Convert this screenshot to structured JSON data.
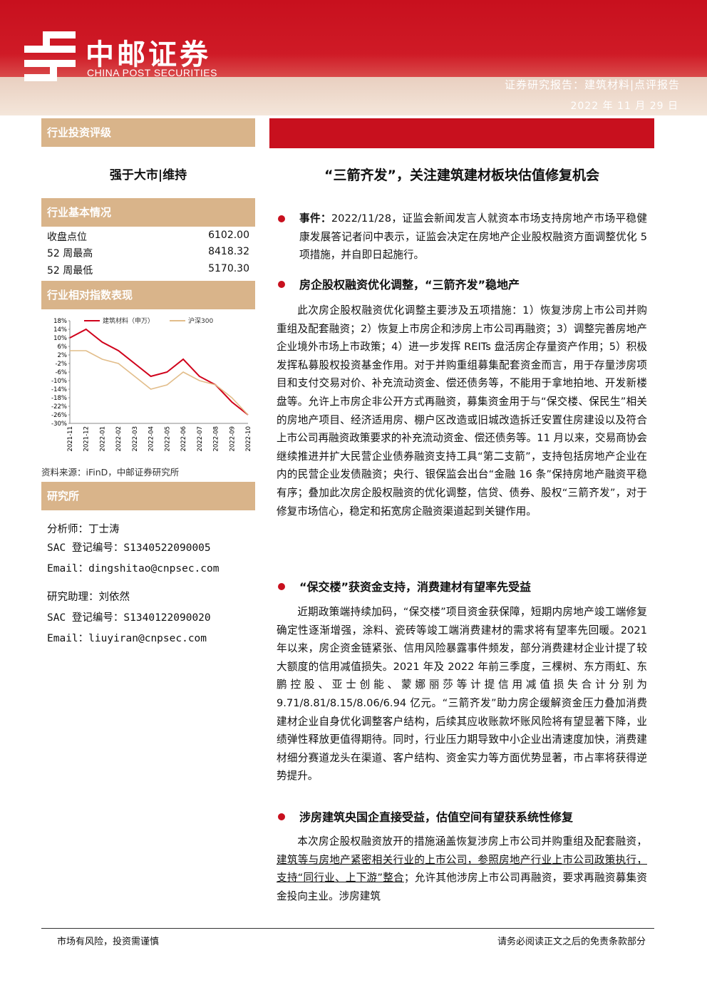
{
  "header": {
    "brand": "中邮证券",
    "brand_en": "CHINA POST SECURITIES",
    "report_type": "证券研究报告：建筑材料|点评报告",
    "date": "2022 年 11 月 29 日"
  },
  "sidebar": {
    "rating_title": "行业投资评级",
    "rating": "强于大市|维持",
    "basic_title": "行业基本情况",
    "basic_rows": [
      [
        "收盘点位",
        "6102.00"
      ],
      [
        "52 周最高",
        "8418.32"
      ],
      [
        "52 周最低",
        "5170.30"
      ]
    ],
    "index_title": "行业相对指数表现",
    "chart_data": {
      "type": "line",
      "categories": [
        "2021-11",
        "2021-12",
        "2022-01",
        "2022-02",
        "2022-03",
        "2022-04",
        "2022-05",
        "2022-06",
        "2022-07",
        "2022-08",
        "2022-09",
        "2022-10"
      ],
      "series": [
        {
          "name": "建筑材料（申万）",
          "color": "#d0021b",
          "values": [
            10,
            14,
            8,
            4,
            -2,
            -8,
            -6,
            0,
            -8,
            -12,
            -20,
            -26
          ]
        },
        {
          "name": "沪深300",
          "color": "#e2bd8a",
          "values": [
            4,
            4,
            0,
            -2,
            -8,
            -14,
            -12,
            -6,
            -10,
            -12,
            -18,
            -26
          ]
        }
      ],
      "ylim": [
        -30,
        18
      ],
      "yticks": [
        {
          "value": 18,
          "label": "18%"
        },
        {
          "value": 14,
          "label": "14%"
        },
        {
          "value": 10,
          "label": "10%"
        },
        {
          "value": 6,
          "label": "6%"
        },
        {
          "value": 2,
          "label": "2%"
        },
        {
          "value": -2,
          "label": "-2%"
        },
        {
          "value": -6,
          "label": "-6%"
        },
        {
          "value": -10,
          "label": "-10%"
        },
        {
          "value": -14,
          "label": "-14%"
        },
        {
          "value": -18,
          "label": "-18%"
        },
        {
          "value": -22,
          "label": "-22%"
        },
        {
          "value": -26,
          "label": "-26%"
        },
        {
          "value": -30,
          "label": "-30%"
        }
      ]
    },
    "source": "资料来源：iFinD，中邮证券研究所",
    "research_title": "研究所",
    "analysts": [
      "分析师：丁士涛",
      "SAC 登记编号：S1340522090005",
      "Email：dingshitao@cnpsec.com",
      "研究助理：刘依然",
      "SAC 登记编号：S1340122090020",
      "Email：liuyiran@cnpsec.com"
    ]
  },
  "main": {
    "title": "“三箭齐发”，关注建筑建材板块估值修复机会",
    "event_label": "事件：",
    "event_text": "2022/11/28，证监会新闻发言人就资本市场支持房地产市场平稳健康发展答记者问中表示，证监会决定在房地产企业股权融资方面调整优化 5 项措施，并自即日起施行。",
    "sections": [
      {
        "heading": "房企股权融资优化调整，“三箭齐发”稳地产",
        "text": "此次房企股权融资优化调整主要涉及五项措施：1）恢复涉房上市公司并购重组及配套融资；2）恢复上市房企和涉房上市公司再融资；3）调整完善房地产企业境外市场上市政策；4）进一步发挥 REITs 盘活房企存量资产作用；5）积极发挥私募股权投资基金作用。对于并购重组募集配套资金而言，用于存量涉房项目和支付交易对价、补充流动资金、偿还债务等，不能用于拿地拍地、开发新楼盘等。允许上市房企非公开方式再融资，募集资金用于与“保交楼、保民生”相关的房地产项目、经济适用房、棚户区改造或旧城改造拆迁安置住房建设以及符合上市公司再融资政策要求的补充流动资金、偿还债务等。11 月以来，交易商协会继续推进并扩大民营企业债券融资支持工具“第二支箭”，支持包括房地产企业在内的民营企业发债融资；央行、银保监会出台“金融 16 条”保持房地产融资平稳有序；叠加此次房企股权融资的优化调整，信贷、债券、股权“三箭齐发”，对于修复市场信心，稳定和拓宽房企融资渠道起到关键作用。"
      },
      {
        "heading": "“保交楼”获资金支持，消费建材有望率先受益",
        "text": "近期政策端持续加码，“保交楼”项目资金获保障，短期内房地产竣工端修复确定性逐渐增强，涂料、瓷砖等竣工端消费建材的需求将有望率先回暖。2021 年以来，房企资金链紧张、信用风险暴露事件频发，部分消费建材企业计提了较大额度的信用减值损失。2021 年及 2022 年前三季度，三棵树、东方雨虹、东鹏控股、亚士创能、蒙娜丽莎等计提信用减值损失合计分别为 9.71/8.81/8.15/8.06/6.94 亿元。“三箭齐发”助力房企缓解资金压力叠加消费建材企业自身优化调整客户结构，后续其应收账款坏账风险将有望显著下降，业绩弹性释放更值得期待。同时，行业压力期导致中小企业出清速度加快，消费建材细分赛道龙头在渠道、客户结构、资金实力等方面优势显著，市占率将获得逆势提升。"
      },
      {
        "heading": "涉房建筑央国企直接受益，估值空间有望获系统性修复",
        "parts": [
          "本次房企股权融资放开的措施涵盖恢复涉房上市公司并购重组及配套融资，",
          "建筑等与房地产紧密相关行业的上市公司，参照房地产行业上市公司政策执行，支持“同行业、上下游”整合",
          "；允许其他涉房上市公司再融资，要求再融资募集资金投向主业。涉房建筑"
        ]
      }
    ]
  },
  "footer": {
    "left": "市场有风险，投资需谨慎",
    "right": "请务必阅读正文之后的免责条款部分"
  }
}
